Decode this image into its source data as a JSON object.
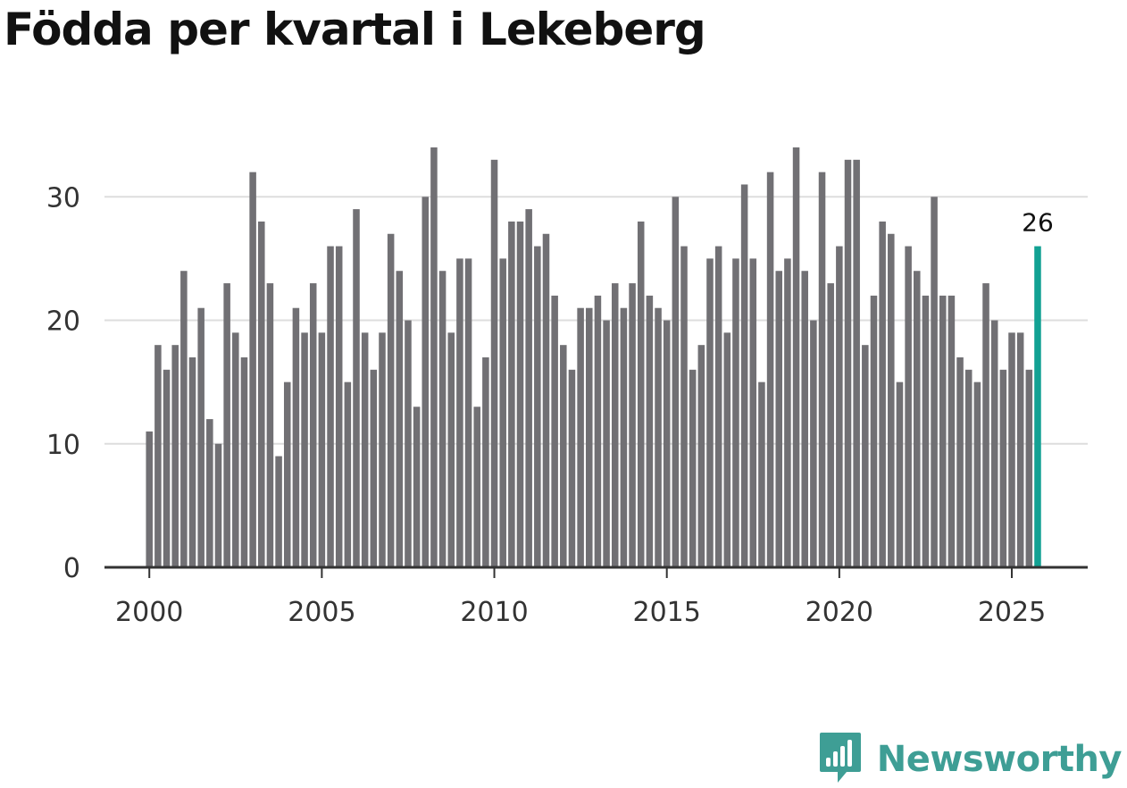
{
  "chart_data": {
    "type": "bar",
    "title": "Födda per kvartal i Lekeberg",
    "xlabel": "",
    "ylabel": "",
    "x_start": 2000.0,
    "x_step": 0.25,
    "values": [
      11,
      18,
      16,
      18,
      24,
      17,
      21,
      12,
      10,
      23,
      19,
      17,
      32,
      28,
      23,
      9,
      15,
      21,
      19,
      23,
      19,
      26,
      26,
      15,
      29,
      19,
      16,
      19,
      27,
      24,
      20,
      13,
      30,
      34,
      24,
      19,
      25,
      25,
      13,
      17,
      33,
      25,
      28,
      28,
      29,
      26,
      27,
      22,
      18,
      16,
      21,
      21,
      22,
      20,
      23,
      21,
      23,
      28,
      22,
      21,
      20,
      30,
      26,
      16,
      18,
      25,
      26,
      19,
      25,
      31,
      25,
      15,
      32,
      24,
      25,
      34,
      24,
      20,
      32,
      23,
      26,
      33,
      33,
      18,
      22,
      28,
      27,
      15,
      26,
      24,
      22,
      30,
      22,
      22,
      17,
      16,
      15,
      23,
      20,
      16,
      19,
      19,
      16,
      26
    ],
    "ylim": [
      0,
      34
    ],
    "yticks": [
      0,
      10,
      20,
      30
    ],
    "xticks": [
      2000,
      2005,
      2010,
      2015,
      2020,
      2025
    ],
    "xlim": [
      1998.7,
      2027.2
    ],
    "grid": true,
    "highlight_last": true,
    "last_label": "26",
    "colors": {
      "bar": "#717074",
      "highlight": "#12a193",
      "grid": "#dddddd",
      "axis": "#333333"
    }
  },
  "brand": {
    "name": "Newsworthy",
    "color": "#3e9e95",
    "icon": "newsworthy-logo-icon"
  }
}
